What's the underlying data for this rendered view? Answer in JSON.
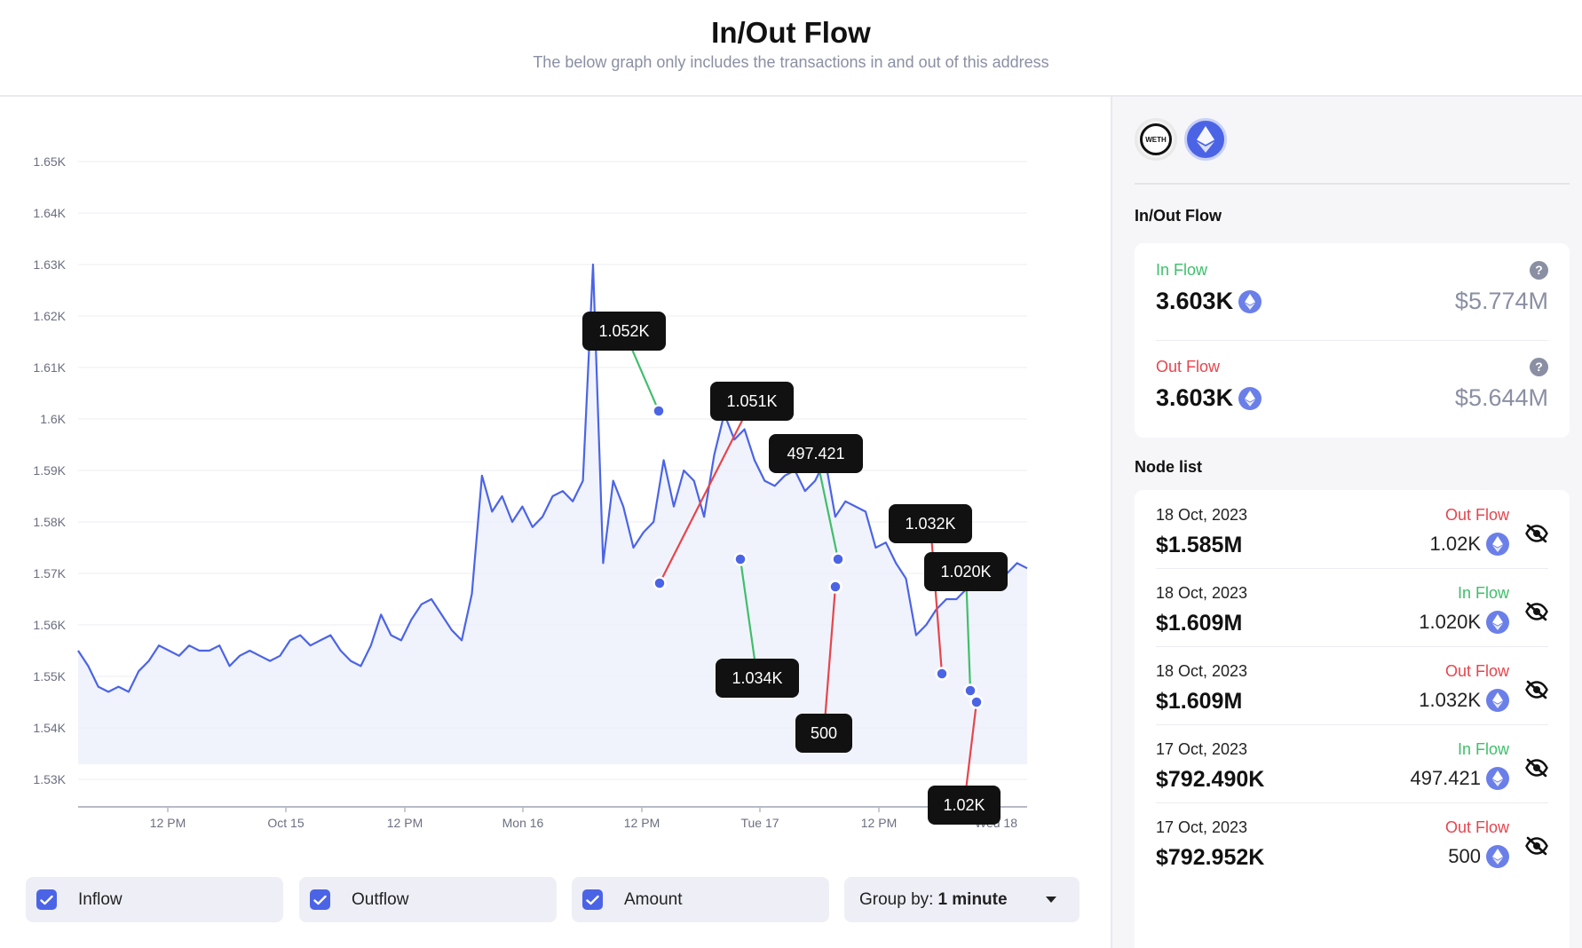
{
  "header": {
    "title": "In/Out Flow",
    "subtitle": "The below graph only includes the transactions in and out of this address"
  },
  "colors": {
    "line": "#4b64e6",
    "inflow": "#3fbf6b",
    "outflow": "#e6454d",
    "label_bg": "#111111",
    "muted": "#8a8fa3"
  },
  "chart_data": {
    "type": "line",
    "title": "",
    "xlabel": "",
    "ylabel": "",
    "ylim": [
      1525,
      1655
    ],
    "y_ticks": [
      "1.53K",
      "1.54K",
      "1.55K",
      "1.56K",
      "1.57K",
      "1.58K",
      "1.59K",
      "1.6K",
      "1.61K",
      "1.62K",
      "1.63K",
      "1.64K",
      "1.65K"
    ],
    "x_ticks": [
      "12 PM",
      "Oct 15",
      "12 PM",
      "Mon 16",
      "12 PM",
      "Tue 17",
      "12 PM",
      "Wed 18"
    ],
    "grid": true,
    "series": [
      {
        "values": [
          1555,
          1552,
          1548,
          1547,
          1548,
          1547,
          1551,
          1553,
          1556,
          1555,
          1554,
          1556,
          1555,
          1555,
          1556,
          1552,
          1554,
          1555,
          1554,
          1553,
          1554,
          1557,
          1558,
          1556,
          1557,
          1558,
          1555,
          1553,
          1552,
          1556,
          1562,
          1558,
          1557,
          1561,
          1564,
          1565,
          1562,
          1559,
          1557,
          1566,
          1589,
          1582,
          1585,
          1580,
          1583,
          1579,
          1581,
          1585,
          1586,
          1584,
          1588,
          1630,
          1572,
          1588,
          1583,
          1575,
          1578,
          1580,
          1592,
          1583,
          1590,
          1588,
          1581,
          1593,
          1601,
          1596,
          1598,
          1592,
          1588,
          1587,
          1589,
          1590,
          1586,
          1588,
          1592,
          1581,
          1584,
          1583,
          1582,
          1575,
          1576,
          1572,
          1569,
          1558,
          1560,
          1563,
          1565,
          1565,
          1567,
          1569,
          1568,
          1568,
          1570,
          1572,
          1571
        ]
      }
    ],
    "annotations": [
      {
        "label": "1.052K",
        "flow": "in"
      },
      {
        "label": "1.051K",
        "flow": "out"
      },
      {
        "label": "497.421",
        "flow": "in"
      },
      {
        "label": "1.032K",
        "flow": "out"
      },
      {
        "label": "1.020K",
        "flow": "in"
      },
      {
        "label": "1.034K",
        "flow": "in"
      },
      {
        "label": "500",
        "flow": "out"
      },
      {
        "label": "1.02K",
        "flow": "out"
      }
    ]
  },
  "controls": {
    "inflow_label": "Inflow",
    "outflow_label": "Outflow",
    "amount_label": "Amount",
    "group_by_label": "Group by:",
    "group_by_value": "1 minute"
  },
  "sidebar": {
    "tokens": {
      "weth": "WETH",
      "eth": "eth-icon"
    },
    "flow_title": "In/Out Flow",
    "in_flow": {
      "label": "In Flow",
      "amount": "3.603K",
      "usd": "$5.774M"
    },
    "out_flow": {
      "label": "Out Flow",
      "amount": "3.603K",
      "usd": "$5.644M"
    },
    "node_title": "Node list",
    "nodes": [
      {
        "date": "18 Oct, 2023",
        "value": "$1.585M",
        "type": "Out Flow",
        "amount": "1.02K"
      },
      {
        "date": "18 Oct, 2023",
        "value": "$1.609M",
        "type": "In Flow",
        "amount": "1.020K"
      },
      {
        "date": "18 Oct, 2023",
        "value": "$1.609M",
        "type": "Out Flow",
        "amount": "1.032K"
      },
      {
        "date": "17 Oct, 2023",
        "value": "$792.490K",
        "type": "In Flow",
        "amount": "497.421"
      },
      {
        "date": "17 Oct, 2023",
        "value": "$792.952K",
        "type": "Out Flow",
        "amount": "500"
      }
    ]
  }
}
